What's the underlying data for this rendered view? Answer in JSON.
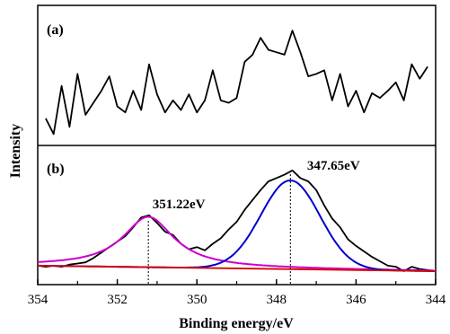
{
  "chart_data": [
    {
      "type": "line",
      "panel_label": "(a)",
      "x_reversed": true,
      "xlim": [
        354,
        344
      ],
      "series": [
        {
          "color": "#000000",
          "x": [
            353.8,
            353.6,
            353.4,
            353.2,
            353.0,
            352.8,
            352.6,
            352.4,
            352.2,
            352.0,
            351.8,
            351.6,
            351.4,
            351.2,
            351.0,
            350.8,
            350.6,
            350.4,
            350.2,
            350.0,
            349.8,
            349.6,
            349.4,
            349.2,
            349.0,
            348.8,
            348.6,
            348.4,
            348.2,
            348.0,
            347.8,
            347.6,
            347.4,
            347.2,
            347.0,
            346.8,
            346.6,
            346.4,
            346.2,
            346.0,
            345.8,
            345.6,
            345.4,
            345.2,
            345.0,
            344.8,
            344.6,
            344.4,
            344.2
          ],
          "y": [
            0.15,
            0.02,
            0.42,
            0.08,
            0.52,
            0.18,
            0.28,
            0.38,
            0.5,
            0.25,
            0.2,
            0.38,
            0.22,
            0.6,
            0.35,
            0.2,
            0.3,
            0.22,
            0.35,
            0.2,
            0.3,
            0.55,
            0.3,
            0.28,
            0.32,
            0.62,
            0.68,
            0.82,
            0.72,
            0.7,
            0.68,
            0.88,
            0.7,
            0.5,
            0.52,
            0.55,
            0.3,
            0.52,
            0.25,
            0.38,
            0.2,
            0.36,
            0.32,
            0.38,
            0.45,
            0.3,
            0.6,
            0.48,
            0.58
          ]
        }
      ]
    },
    {
      "type": "line",
      "panel_label": "(b)",
      "x_reversed": true,
      "xlim": [
        354,
        344
      ],
      "xticks": [
        "354",
        "352",
        "350",
        "348",
        "346",
        "344"
      ],
      "xlabel": "Binding energy/eV",
      "ylabel": "Intensity",
      "annotations": [
        {
          "text": "351.22eV",
          "x": 351.22
        },
        {
          "text": "347.65eV",
          "x": 347.65
        }
      ],
      "series": [
        {
          "color": "#000000",
          "x": [
            354,
            353.8,
            353.6,
            353.4,
            353.2,
            353.0,
            352.8,
            352.6,
            352.4,
            352.2,
            352.0,
            351.8,
            351.6,
            351.4,
            351.2,
            351.0,
            350.8,
            350.6,
            350.4,
            350.2,
            350.0,
            349.8,
            349.6,
            349.4,
            349.2,
            349.0,
            348.8,
            348.6,
            348.4,
            348.2,
            348.0,
            347.8,
            347.6,
            347.4,
            347.2,
            347.0,
            346.8,
            346.6,
            346.4,
            346.2,
            346.0,
            345.8,
            345.6,
            345.4,
            345.2,
            345.0,
            344.8,
            344.6,
            344.4,
            344.2,
            344.0
          ],
          "y": [
            0.05,
            0.04,
            0.05,
            0.04,
            0.06,
            0.07,
            0.08,
            0.12,
            0.17,
            0.22,
            0.27,
            0.32,
            0.4,
            0.49,
            0.51,
            0.44,
            0.36,
            0.33,
            0.25,
            0.2,
            0.22,
            0.19,
            0.25,
            0.3,
            0.38,
            0.45,
            0.56,
            0.65,
            0.74,
            0.82,
            0.85,
            0.88,
            0.92,
            0.85,
            0.82,
            0.74,
            0.6,
            0.48,
            0.4,
            0.29,
            0.23,
            0.18,
            0.13,
            0.09,
            0.05,
            0.04,
            0.0,
            0.04,
            0.02,
            0.01,
            0.0
          ]
        },
        {
          "color": "#cc00cc",
          "peak_x": 351.22,
          "amplitude": 0.46,
          "width": 0.78,
          "baseline": 0.045,
          "shape": "lorentzian"
        },
        {
          "color": "#0000cc",
          "peak_x": 347.65,
          "amplitude": 0.81,
          "width": 1.05,
          "baseline": 0.045,
          "shape": "gaussian"
        },
        {
          "color": "#dd0000",
          "shape": "baseline",
          "x": [
            354,
            344
          ],
          "y": [
            0.05,
            0.0
          ]
        }
      ]
    }
  ]
}
